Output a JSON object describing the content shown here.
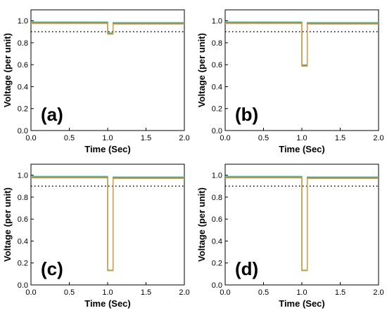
{
  "chart_data": [
    {
      "type": "line",
      "panel_label": "(a)",
      "xlabel": "Time (Sec)",
      "ylabel": "Voltage (per unit)",
      "xlim": [
        0,
        2.0
      ],
      "ylim": [
        0,
        1.1
      ],
      "xticks": [
        "0.0",
        "0.5",
        "1.0",
        "1.5",
        "2.0"
      ],
      "yticks": [
        "0.0",
        "0.2",
        "0.4",
        "0.6",
        "0.8",
        "1.0"
      ],
      "threshold": 0.9,
      "fault": {
        "start": 1.0,
        "end": 1.07
      },
      "series": [
        {
          "color": "#6cc3d8",
          "pre": 0.99,
          "dip": 0.89,
          "post": 0.985
        },
        {
          "color": "#5aa870",
          "pre": 0.985,
          "dip": 0.885,
          "post": 0.98
        },
        {
          "color": "#808080",
          "pre": 0.978,
          "dip": 0.88,
          "post": 0.975
        },
        {
          "color": "#e0a030",
          "pre": 0.975,
          "dip": 0.878,
          "post": 0.97
        }
      ]
    },
    {
      "type": "line",
      "panel_label": "(b)",
      "xlabel": "Time (Sec)",
      "ylabel": "Voltage (per unit)",
      "xlim": [
        0,
        2.0
      ],
      "ylim": [
        0,
        1.1
      ],
      "xticks": [
        "0.0",
        "0.5",
        "1.0",
        "1.5",
        "2.0"
      ],
      "yticks": [
        "0.0",
        "0.2",
        "0.4",
        "0.6",
        "0.8",
        "1.0"
      ],
      "threshold": 0.9,
      "fault": {
        "start": 1.0,
        "end": 1.07
      },
      "series": [
        {
          "color": "#6cc3d8",
          "pre": 0.99,
          "dip": 0.6,
          "post": 0.985
        },
        {
          "color": "#5aa870",
          "pre": 0.985,
          "dip": 0.593,
          "post": 0.98
        },
        {
          "color": "#808080",
          "pre": 0.978,
          "dip": 0.588,
          "post": 0.975
        },
        {
          "color": "#e0a030",
          "pre": 0.975,
          "dip": 0.585,
          "post": 0.97
        }
      ]
    },
    {
      "type": "line",
      "panel_label": "(c)",
      "xlabel": "Time (Sec)",
      "ylabel": "Voltage (per unit)",
      "xlim": [
        0,
        2.0
      ],
      "ylim": [
        0,
        1.1
      ],
      "xticks": [
        "0.0",
        "0.5",
        "1.0",
        "1.5",
        "2.0"
      ],
      "yticks": [
        "0.0",
        "0.2",
        "0.4",
        "0.6",
        "0.8",
        "1.0"
      ],
      "threshold": 0.9,
      "fault": {
        "start": 1.0,
        "end": 1.07
      },
      "series": [
        {
          "color": "#6cc3d8",
          "pre": 0.99,
          "dip": 0.135,
          "post": 0.985
        },
        {
          "color": "#5aa870",
          "pre": 0.985,
          "dip": 0.133,
          "post": 0.98
        },
        {
          "color": "#808080",
          "pre": 0.978,
          "dip": 0.131,
          "post": 0.975
        },
        {
          "color": "#e0a030",
          "pre": 0.975,
          "dip": 0.13,
          "post": 0.97
        }
      ]
    },
    {
      "type": "line",
      "panel_label": "(d)",
      "xlabel": "Time (Sec)",
      "ylabel": "Voltage (per unit)",
      "xlim": [
        0,
        2.0
      ],
      "ylim": [
        0,
        1.1
      ],
      "xticks": [
        "0.0",
        "0.5",
        "1.0",
        "1.5",
        "2.0"
      ],
      "yticks": [
        "0.0",
        "0.2",
        "0.4",
        "0.6",
        "0.8",
        "1.0"
      ],
      "threshold": 0.9,
      "fault": {
        "start": 1.0,
        "end": 1.07
      },
      "series": [
        {
          "color": "#6cc3d8",
          "pre": 0.99,
          "dip": 0.135,
          "post": 0.985
        },
        {
          "color": "#5aa870",
          "pre": 0.985,
          "dip": 0.133,
          "post": 0.98
        },
        {
          "color": "#808080",
          "pre": 0.978,
          "dip": 0.131,
          "post": 0.975
        },
        {
          "color": "#e0a030",
          "pre": 0.975,
          "dip": 0.13,
          "post": 0.97
        }
      ]
    }
  ]
}
